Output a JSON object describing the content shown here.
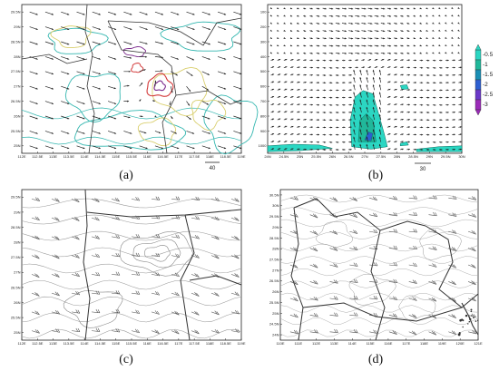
{
  "figure": {
    "captions": [
      "(a)",
      "(b)",
      "(c)",
      "(d)"
    ]
  },
  "panels": {
    "a": {
      "yticks": [
        "29.5N",
        "29N",
        "28.5N",
        "28N",
        "27.5N",
        "27N",
        "26.5N",
        "26N",
        "25.5N",
        "25N"
      ],
      "xticks": [
        "112E",
        "112.5E",
        "113E",
        "113.5E",
        "114E",
        "114.5E",
        "115E",
        "115.5E",
        "116E",
        "116.5E",
        "117E",
        "117.5E",
        "118E",
        "118.5E",
        "119E"
      ],
      "ref_vector": "40",
      "colors": {
        "contour_cyan": "#35b7b0",
        "contour_yellow": "#d9cf6e",
        "contour_red": "#d33a3a",
        "contour_purple": "#7b2a8c",
        "boundary": "#333333"
      }
    },
    "b": {
      "yticks": [
        "100",
        "200",
        "300",
        "400",
        "500",
        "600",
        "700",
        "800",
        "900",
        "1000"
      ],
      "xticks": [
        "24N",
        "24.5N",
        "25N",
        "25.5N",
        "26N",
        "26.5N",
        "27N",
        "27.5N",
        "28N",
        "28.5N",
        "29N",
        "29.5N",
        "30N"
      ],
      "ref_vector": "30",
      "colorbar": {
        "labels": [
          "-0.5",
          "-1",
          "-1.5",
          "-2",
          "-2.5",
          "-3"
        ],
        "colors": [
          "#2bd6c2",
          "#20b89a",
          "#1a8fb5",
          "#2d5fd1",
          "#6a38c8",
          "#9b2bb8"
        ]
      }
    },
    "c": {
      "yticks": [
        "29.5N",
        "29N",
        "28.5N",
        "28N",
        "27.5N",
        "27N",
        "26.5N",
        "26N",
        "25.5N",
        "25N"
      ],
      "xticks": [
        "112E",
        "112.5E",
        "113E",
        "113.5E",
        "114E",
        "114.5E",
        "115E",
        "115.5E",
        "116E",
        "116.5E",
        "117E",
        "117.5E",
        "118E",
        "118.5E",
        "119E"
      ]
    },
    "d": {
      "yticks": [
        "30.5N",
        "30N",
        "29.5N",
        "29N",
        "28.5N",
        "28N",
        "27.5N",
        "27N",
        "26.5N",
        "26N",
        "25.5N",
        "25N",
        "24.5N",
        "24N"
      ],
      "xticks": [
        "110E",
        "111E",
        "112E",
        "113E",
        "114E",
        "115E",
        "116E",
        "117E",
        "118E",
        "119E",
        "120E",
        "121E"
      ]
    }
  },
  "chart_data": [
    {
      "type": "contour",
      "panel": "(a)",
      "x_axis_ticks": [
        "112E",
        "112.5E",
        "113E",
        "113.5E",
        "114E",
        "114.5E",
        "115E",
        "115.5E",
        "116E",
        "116.5E",
        "117E",
        "117.5E",
        "118E",
        "118.5E",
        "119E"
      ],
      "y_axis_ticks": [
        "25N",
        "25.5N",
        "26N",
        "26.5N",
        "27N",
        "27.5N",
        "28N",
        "28.5N",
        "29N",
        "29.5N"
      ],
      "xlim": [
        112,
        119
      ],
      "ylim": [
        25,
        30
      ],
      "overlay": "wind vectors, reference vector 40",
      "features": [
        "closed contour centre near 116.3E 27.2N",
        "closed contour near 115.5E 28.2N"
      ]
    },
    {
      "type": "heatmap",
      "panel": "(b)",
      "x_axis_ticks": [
        "24N",
        "24.5N",
        "25N",
        "25.5N",
        "26N",
        "26.5N",
        "27N",
        "27.5N",
        "28N",
        "28.5N",
        "29N",
        "29.5N",
        "30N"
      ],
      "y_axis_ticks": [
        100,
        200,
        300,
        400,
        500,
        600,
        700,
        800,
        900,
        1000
      ],
      "xlim": [
        24,
        30
      ],
      "ylim": [
        1000,
        100
      ],
      "overlay": "wind vectors, reference vector 30",
      "colorbar_levels": [
        -0.5,
        -1,
        -1.5,
        -2,
        -2.5,
        -3
      ],
      "features": [
        "negative region 26.5N-27.6N from ~620 hPa to 1000 hPa, minimum below -2 near 27.2N 900 hPa",
        "shallow negative layer 24N-26N near 950-1000 hPa",
        "small negative cell near 28.2N 600 hPa",
        "negative region 28.6N-30N near 980 hPa"
      ]
    },
    {
      "type": "contour",
      "panel": "(c)",
      "x_axis_ticks": [
        "112E",
        "112.5E",
        "113E",
        "113.5E",
        "114E",
        "114.5E",
        "115E",
        "115.5E",
        "116E",
        "116.5E",
        "117E",
        "117.5E",
        "118E",
        "118.5E",
        "119E"
      ],
      "y_axis_ticks": [
        "25N",
        "25.5N",
        "26N",
        "26.5N",
        "27N",
        "27.5N",
        "28N",
        "28.5N",
        "29N",
        "29.5N"
      ],
      "xlim": [
        112,
        119
      ],
      "ylim": [
        25,
        30
      ],
      "overlay": "wind barbs",
      "features": [
        "closed contours near 116E 28.2N"
      ]
    },
    {
      "type": "contour",
      "panel": "(d)",
      "x_axis_ticks": [
        "110E",
        "111E",
        "112E",
        "113E",
        "114E",
        "115E",
        "116E",
        "117E",
        "118E",
        "119E",
        "120E",
        "121E"
      ],
      "y_axis_ticks": [
        "24N",
        "24.5N",
        "25N",
        "25.5N",
        "26N",
        "26.5N",
        "27N",
        "27.5N",
        "28N",
        "28.5N",
        "29N",
        "29.5N",
        "30N",
        "30.5N"
      ],
      "xlim": [
        110,
        121
      ],
      "ylim": [
        24,
        30.5
      ],
      "overlay": "wind barbs"
    }
  ]
}
